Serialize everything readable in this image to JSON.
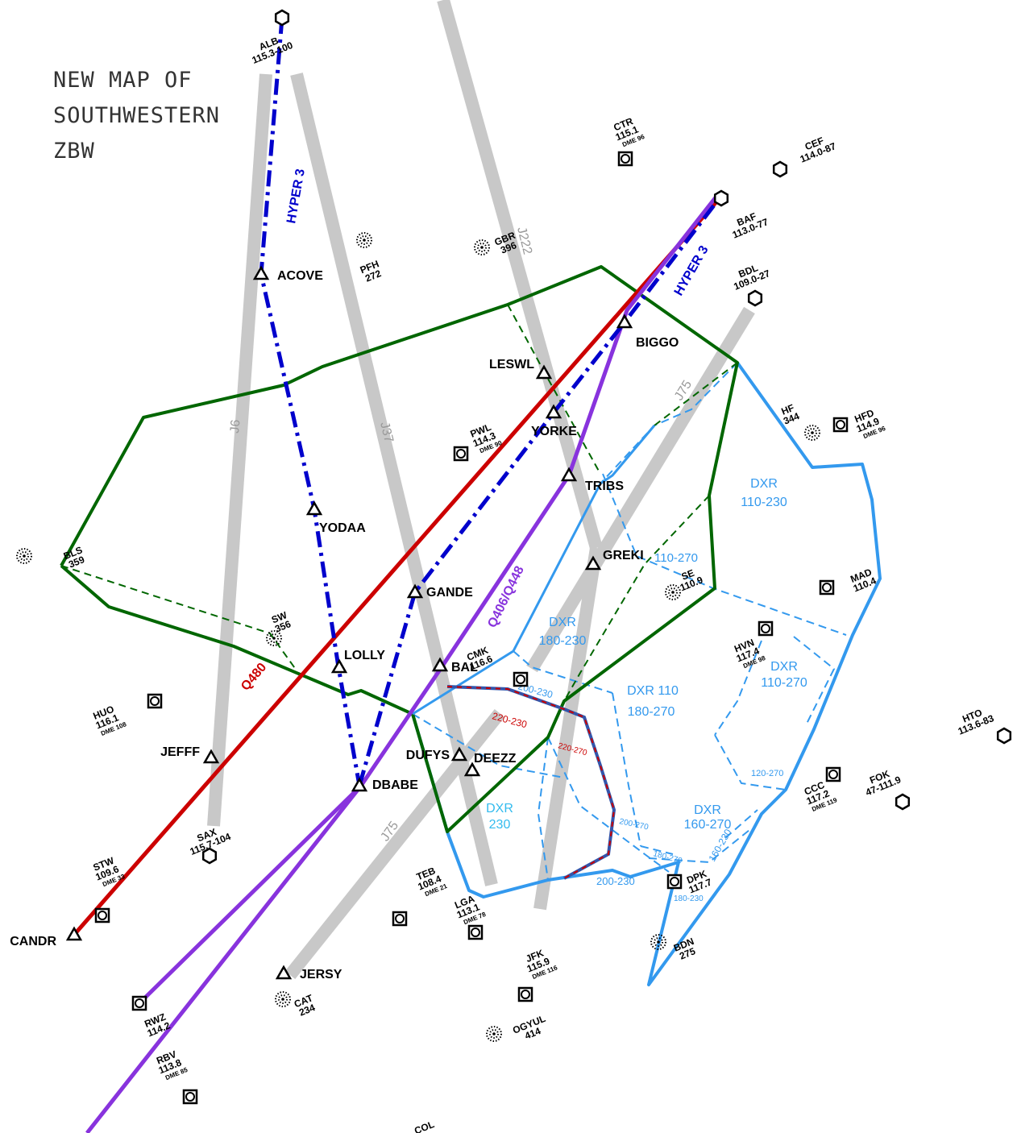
{
  "title_lines": [
    "NEW MAP OF",
    "SOUTHWESTERN",
    "ZBW"
  ],
  "colors": {
    "airway": "#c8c8c8",
    "hyper": "#0000cc",
    "q480": "#cc0000",
    "q406": "#8833dd",
    "sector_green": "#006600",
    "sector_blue": "#3399ee",
    "dxr_cyan": "#33bbee"
  },
  "airways": [
    "J6",
    "J37",
    "J222",
    "J75",
    "J75"
  ],
  "routes": {
    "hyper_west": "HYPER 3",
    "hyper_east": "HYPER 3",
    "q480": "Q480",
    "q406": "Q406/Q448"
  },
  "fixes": [
    "ACOVE",
    "LESWL",
    "BIGGO",
    "YORKE",
    "TRIBS",
    "GREKI",
    "YODAA",
    "GANDE",
    "LOLLY",
    "BAL",
    "DUFYS",
    "DEEZZ",
    "DBABE",
    "JEFFF",
    "CANDR",
    "JERSY"
  ],
  "navaids": [
    {
      "id": "ALB",
      "freq": "115.3-100"
    },
    {
      "id": "CTR",
      "freq": "115.1",
      "dme": "DME 96"
    },
    {
      "id": "CEF",
      "freq": "114.0-87"
    },
    {
      "id": "BAF",
      "freq": "113.0-77"
    },
    {
      "id": "BDL",
      "freq": "109.0-27"
    },
    {
      "id": "GBR",
      "freq": "396"
    },
    {
      "id": "PFH",
      "freq": "272"
    },
    {
      "id": "PWL",
      "freq": "114.3",
      "dme": "DME 90"
    },
    {
      "id": "HFD",
      "freq": "114.9",
      "dme": "DME 96"
    },
    {
      "id": "HF",
      "freq": "344"
    },
    {
      "id": "SAX",
      "freq": "115.7-104"
    },
    {
      "id": "CMK",
      "freq": "116.6"
    },
    {
      "id": "MAD",
      "freq": "110.4"
    },
    {
      "id": "HTO",
      "freq": "113.6-83"
    },
    {
      "id": "CCC",
      "freq": "117.2",
      "dme": "DME 119"
    },
    {
      "id": "FOK",
      "freq": "47-111.9"
    },
    {
      "id": "DPK",
      "freq": "117.7"
    },
    {
      "id": "TEB",
      "freq": "108.4",
      "dme": "DME 21"
    },
    {
      "id": "LGA",
      "freq": "113.1",
      "dme": "DME 78"
    },
    {
      "id": "JFK",
      "freq": "115.9",
      "dme": "DME 116"
    },
    {
      "id": "STW",
      "freq": "109.6",
      "dme": "DME 33"
    },
    {
      "id": "HUO",
      "freq": "116.1",
      "dme": "DME 108"
    },
    {
      "id": "RBV",
      "freq": "113.8",
      "dme": "DME 85"
    },
    {
      "id": "CAT",
      "freq": "234"
    },
    {
      "id": "SW",
      "freq": "356"
    },
    {
      "id": "BLS",
      "freq": "359"
    },
    {
      "id": "RWZ",
      "freq": "114.2"
    },
    {
      "id": "OGYUL",
      "freq": "414"
    },
    {
      "id": "BDN",
      "freq": "275"
    },
    {
      "id": "HVN",
      "freq": "117.4",
      "dme": "DME 98"
    },
    {
      "id": "SE",
      "freq": "110.9"
    },
    {
      "id": "COL",
      "freq": ""
    }
  ],
  "sector_labels": [
    {
      "name": "DXR",
      "range": "110-230"
    },
    {
      "name": "DXR",
      "range": "180-230"
    },
    {
      "name": "DXR",
      "range": "110-270"
    },
    {
      "name": "DXR 110",
      "range": "180-270"
    },
    {
      "name": "DXR",
      "range": "230"
    },
    {
      "name": "DXR",
      "range": "160-270"
    }
  ],
  "small_labels": [
    "110-270",
    "200-230",
    "220-230",
    "220-270",
    "200-270",
    "120-270",
    "180-270",
    "160-230",
    "200-230",
    "180-230"
  ]
}
